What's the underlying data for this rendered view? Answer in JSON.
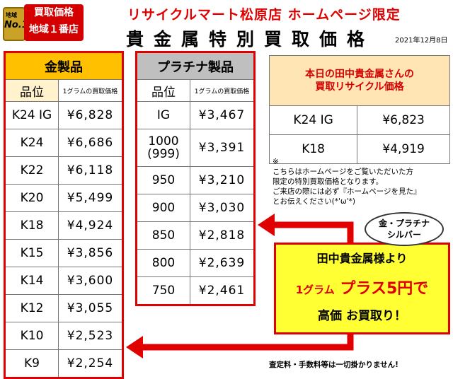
{
  "badge": {
    "small": "地域",
    "big": "No.1",
    "line1": "買取価格",
    "line2": "地域１番店"
  },
  "header": "リサイクルマート松原店 ホームページ限定",
  "title": "貴金属特別買取価格",
  "date": "2021年12月8日",
  "gold": {
    "title": "金製品",
    "col1": "品位",
    "col2": "1グラムの買取価格",
    "rows": [
      {
        "k": "K24 IG",
        "p": "¥6,828"
      },
      {
        "k": "K24",
        "p": "¥6,686"
      },
      {
        "k": "K22",
        "p": "¥6,118"
      },
      {
        "k": "K20",
        "p": "¥5,499"
      },
      {
        "k": "K18",
        "p": "¥4,924"
      },
      {
        "k": "K15",
        "p": "¥3,856"
      },
      {
        "k": "K14",
        "p": "¥3,600"
      },
      {
        "k": "K12",
        "p": "¥3,055"
      },
      {
        "k": "K10",
        "p": "¥2,523"
      },
      {
        "k": "K9",
        "p": "¥2,254"
      }
    ]
  },
  "platinum": {
    "title": "プラチナ製品",
    "col1": "品位",
    "col2": "1グラムの買取価格",
    "rows": [
      {
        "k": "IG",
        "p": "¥3,467"
      },
      {
        "k": "1000\n(999)",
        "p": "¥3,391"
      },
      {
        "k": "950",
        "p": "¥3,210"
      },
      {
        "k": "900",
        "p": "¥3,030"
      },
      {
        "k": "850",
        "p": "¥2,818"
      },
      {
        "k": "800",
        "p": "¥2,639"
      },
      {
        "k": "750",
        "p": "¥2,461"
      }
    ]
  },
  "tanaka": {
    "heading1": "本日の田中貴金属さんの",
    "heading2": "買取リサイクル価格",
    "rows": [
      {
        "k": "K24 IG",
        "p": "¥6,823"
      },
      {
        "k": "K18",
        "p": "¥4,919"
      }
    ]
  },
  "note": {
    "mark": "※",
    "line1": "こちらはホームページをご覧いただいた方",
    "line2": "限定の特別買取価格となります。",
    "line3": "ご来店の際には必ず『ホームページを見た』",
    "line4": "とお伝えください(*'ω'*)"
  },
  "bubble": {
    "line1": "金・プラチナ",
    "line2": "シルバー"
  },
  "promo": {
    "line1": "田中貴金属様より",
    "gram": "1グラム",
    "plus": "プラス5円で",
    "line3": "高価 お買取り！"
  },
  "footer": "査定料・手数料等は一切掛かりません!",
  "colors": {
    "red": "#e00000",
    "gold": "#ffc000",
    "platinum": "#bfbfbf",
    "yellow": "#ffff33"
  }
}
